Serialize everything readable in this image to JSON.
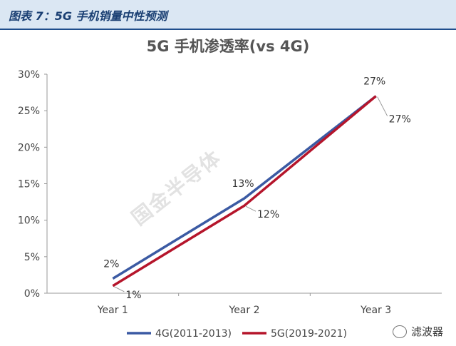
{
  "figure_caption": "图表 7：5G 手机销量中性预测",
  "watermark": "国金半导体",
  "corner_brand": "滤波器",
  "chart_data": {
    "type": "line",
    "title": "5G 手机渗透率(vs 4G)",
    "categories": [
      "Year 1",
      "Year 2",
      "Year 3"
    ],
    "series": [
      {
        "name": "4G(2011-2013)",
        "values": [
          2,
          13,
          27
        ],
        "labels": [
          "2%",
          "13%",
          "27%"
        ],
        "color": "#3b5aa3"
      },
      {
        "name": "5G(2019-2021)",
        "values": [
          1,
          12,
          27
        ],
        "labels": [
          "1%",
          "12%",
          "27%"
        ],
        "color": "#b5152b"
      }
    ],
    "yticks": [
      "0%",
      "5%",
      "10%",
      "15%",
      "20%",
      "25%",
      "30%"
    ],
    "ylim": [
      0,
      30
    ],
    "grid": false,
    "legend": "bottom"
  }
}
